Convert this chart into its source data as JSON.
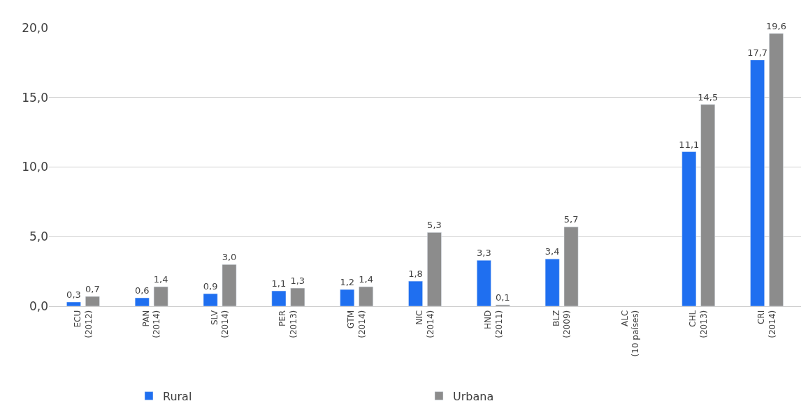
{
  "chart_data": {
    "type": "bar",
    "categories": [
      "ECU\n(2012)",
      "PAN\n(2014)",
      "SLV\n(2014)",
      "PER\n(2013)",
      "GTM\n(2014)",
      "NIC\n(2014)",
      "HND\n(2011)",
      "BLZ\n(2009)",
      "ALC\n(10 países)",
      "CHL\n(2013)",
      "CRI\n(2014)"
    ],
    "series": [
      {
        "name": "Rural",
        "color": "#1f6ff0",
        "values": [
          0.3,
          0.6,
          0.9,
          1.1,
          1.2,
          1.8,
          3.3,
          3.4,
          null,
          11.1,
          17.7
        ],
        "value_labels": [
          "0,3",
          "0,6",
          "0,9",
          "1,1",
          "1,2",
          "1,8",
          "3,3",
          "3,4",
          null,
          "11,1",
          "17,7"
        ]
      },
      {
        "name": "Urbana",
        "color": "#8c8c8c",
        "values": [
          0.7,
          1.4,
          3.0,
          1.3,
          1.4,
          5.3,
          0.1,
          5.7,
          null,
          14.5,
          19.6
        ],
        "value_labels": [
          "0,7",
          "1,4",
          "3,0",
          "1,3",
          "1,4",
          "5,3",
          "0,1",
          "5,7",
          null,
          "14,5",
          "19,6"
        ]
      }
    ],
    "ylim": [
      0,
      20
    ],
    "yticks": [
      {
        "value": 0,
        "label": "0,0"
      },
      {
        "value": 5,
        "label": "5,0"
      },
      {
        "value": 10,
        "label": "10,0"
      },
      {
        "value": 15,
        "label": "15,0"
      },
      {
        "value": 20,
        "label": "20,0"
      }
    ],
    "grid": "y",
    "legend": "bottom"
  }
}
